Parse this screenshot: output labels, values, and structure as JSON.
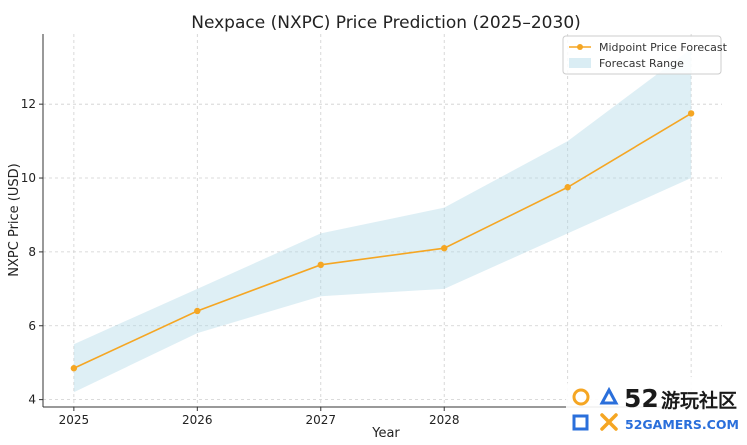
{
  "chart_data": {
    "type": "line",
    "title": "Nexpace (NXPC) Price Prediction (2025–2030)",
    "xlabel": "Year",
    "ylabel": "NXPC Price (USD)",
    "x": [
      2025,
      2026,
      2027,
      2028,
      2029,
      2030
    ],
    "x_tick_labels": [
      "2025",
      "2026",
      "2027",
      "2028"
    ],
    "y_ticks": [
      4,
      6,
      8,
      10,
      12
    ],
    "xlim": [
      2024.75,
      2030.25
    ],
    "ylim": [
      3.8,
      13.9
    ],
    "grid": true,
    "legend_position": "top-right",
    "series": [
      {
        "name": "Midpoint Price Forecast",
        "values": [
          4.85,
          6.4,
          7.65,
          8.1,
          9.75,
          11.75
        ],
        "color": "#f5a623"
      }
    ],
    "range": {
      "name": "Forecast Range",
      "lower": [
        4.2,
        5.8,
        6.8,
        7.0,
        8.5,
        10.0
      ],
      "upper": [
        5.5,
        7.0,
        8.5,
        9.2,
        11.0,
        13.5
      ],
      "color": "#add8e6"
    }
  },
  "watermark": {
    "number": "52",
    "chinese": "游玩社区",
    "site": "52GAMERS.COM",
    "color": "#f5a623"
  }
}
